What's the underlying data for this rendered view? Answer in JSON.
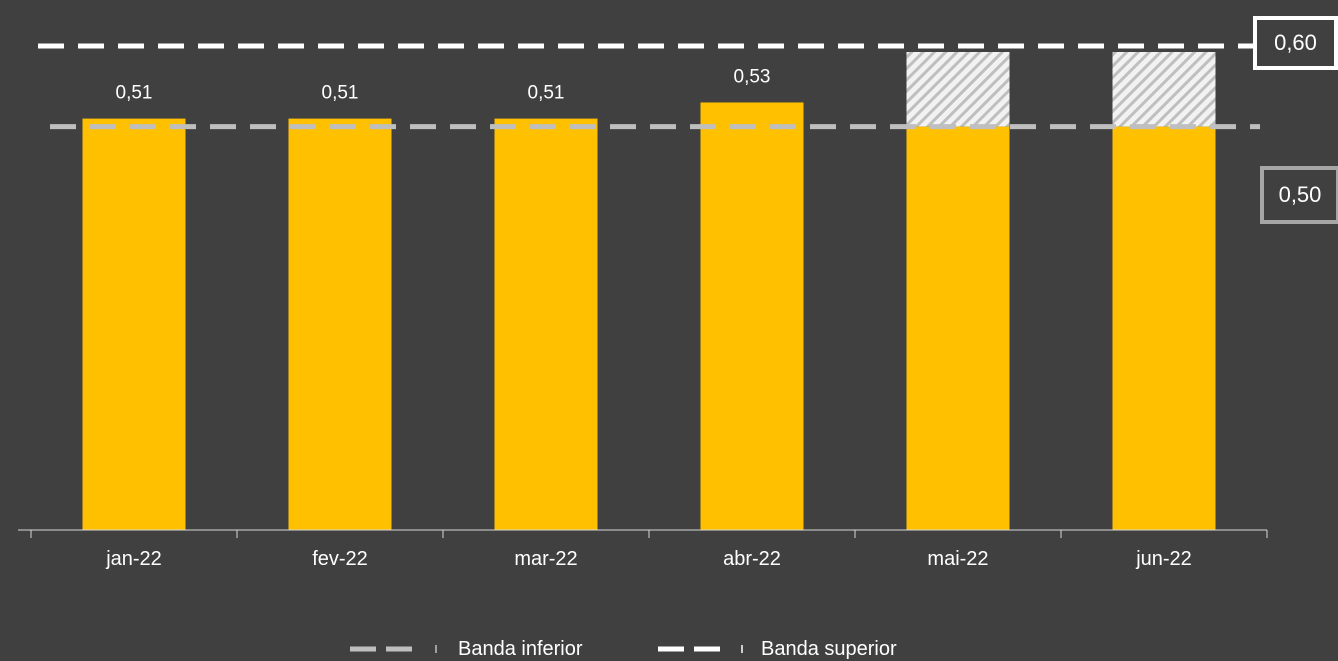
{
  "chart_data": {
    "type": "bar",
    "categories": [
      "jan-22",
      "fev-22",
      "mar-22",
      "abr-22",
      "mai-22",
      "jun-22"
    ],
    "values": [
      0.51,
      0.51,
      0.51,
      0.53,
      0.5,
      0.5
    ],
    "data_labels": [
      "0,51",
      "0,51",
      "0,51",
      "0,53",
      "",
      ""
    ],
    "projected_range": [
      null,
      null,
      null,
      null,
      [
        0.5,
        0.6
      ],
      [
        0.5,
        0.6
      ]
    ],
    "reference_lines": [
      {
        "name": "Banda inferior",
        "value": 0.5,
        "label": "0,50",
        "color": "#bfbfbf",
        "style": "dashed"
      },
      {
        "name": "Banda superior",
        "value": 0.6,
        "label": "0,60",
        "color": "#ffffff",
        "style": "dashed"
      }
    ],
    "ylim": [
      0,
      0.6
    ],
    "bar_color": "#ffc000",
    "hatch_color": "#bfbfbf",
    "background": "#404040",
    "grid": false,
    "legend_position": "bottom-center",
    "title": "",
    "xlabel": "",
    "ylabel": ""
  },
  "labels": {
    "upper_band_value": "0,60",
    "lower_band_value": "0,50"
  },
  "legend": {
    "lower": "Banda inferior",
    "upper": "Banda superior"
  }
}
